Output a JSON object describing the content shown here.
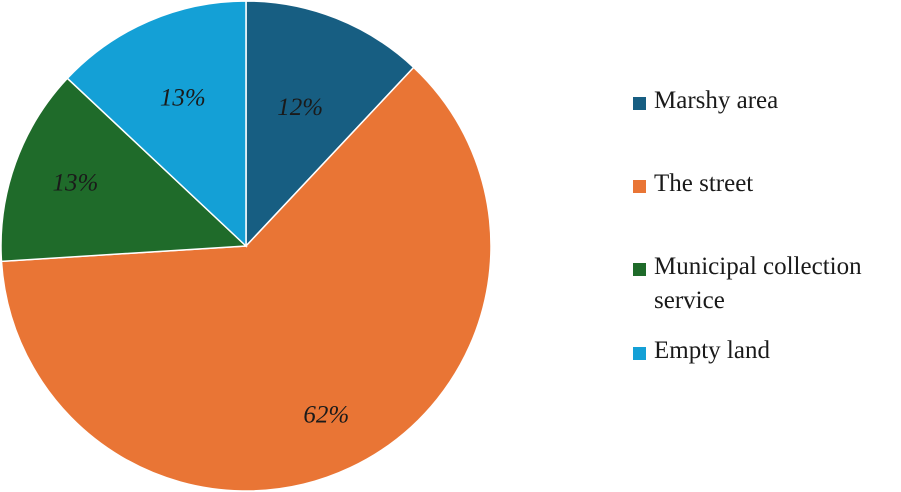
{
  "chart_data": {
    "type": "pie",
    "title": "",
    "slices": [
      {
        "label": "Marshy area",
        "value": 12,
        "display": "12%",
        "color": "#175e82"
      },
      {
        "label": "The street",
        "value": 62,
        "display": "62%",
        "color": "#e97535"
      },
      {
        "label": "Municipal collection service",
        "value": 13,
        "display": "13%",
        "color": "#1f6b2a"
      },
      {
        "label": "Empty land",
        "value": 13,
        "display": "13%",
        "color": "#14a0d6"
      }
    ],
    "legend_position": "right",
    "start_angle": "12 o'clock",
    "direction": "clockwise"
  }
}
